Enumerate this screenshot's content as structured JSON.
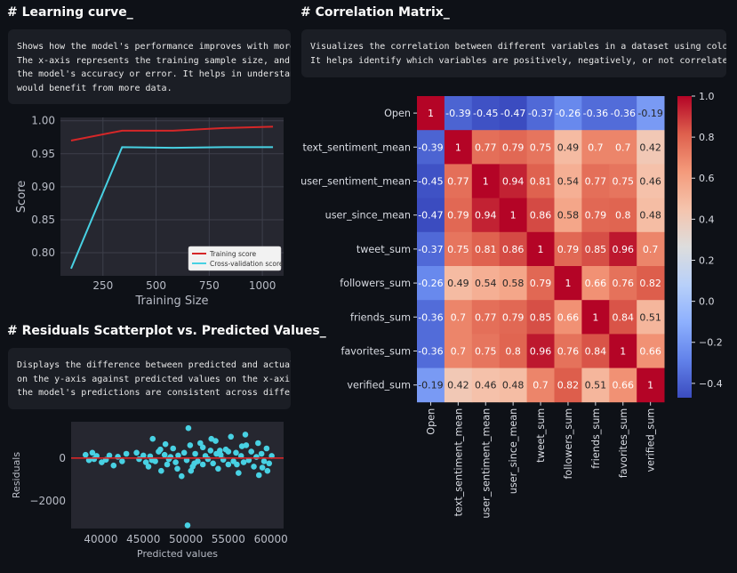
{
  "sections": {
    "learning": {
      "title": "# Learning curve_",
      "description": [
        "Shows how the model's performance improves with more training data.",
        "The x-axis represents the training sample size, and the y-axis shows",
        "the model's accuracy or error. It helps in understanding if the model",
        "would benefit from more data."
      ]
    },
    "residuals": {
      "title": "# Residuals Scatterplot vs. Predicted Values_",
      "description": [
        "Displays the difference between predicted and actual values plotted",
        "on the y-axis against predicted values on the x-axis. It shows if",
        "the model's predictions are consistent across different values."
      ]
    },
    "correlation": {
      "title": "# Correlation Matrix_",
      "description": [
        "Visualizes the correlation between different variables in a dataset using colors.",
        "It helps identify which variables are positively, negatively, or not correlated with each other."
      ]
    }
  },
  "chart_data": [
    {
      "type": "line",
      "xlabel": "Training Size",
      "ylabel": "Score",
      "xticks": [
        250,
        500,
        750,
        1000
      ],
      "yticks": [
        0.8,
        0.85,
        0.9,
        0.95,
        1.0
      ],
      "ytick_labels": [
        "0.80",
        "0.85",
        "0.90",
        "0.95",
        "1.00"
      ],
      "xlim": [
        50,
        1100
      ],
      "ylim": [
        0.765,
        1.005
      ],
      "grid": true,
      "legend": "bottom-right",
      "colors": {
        "background": "#262730",
        "grid": "#3d3f4a",
        "text": "#b8bcc6",
        "training": "#d62728",
        "cv": "#48d1e3"
      },
      "series": [
        {
          "name": "Training score",
          "x": [
            100,
            340,
            580,
            820,
            1050
          ],
          "y": [
            0.97,
            0.985,
            0.985,
            0.989,
            0.991
          ]
        },
        {
          "name": "Cross-validation score",
          "x": [
            100,
            340,
            580,
            820,
            1050
          ],
          "y": [
            0.776,
            0.96,
            0.959,
            0.96,
            0.96
          ]
        }
      ]
    },
    {
      "type": "scatter",
      "xlabel": "Predicted values",
      "ylabel": "Residuals",
      "xticks": [
        40000,
        45000,
        50000,
        55000,
        60000
      ],
      "yticks": [
        -2000,
        0
      ],
      "ytick_labels": [
        "−2000",
        "0"
      ],
      "xlim": [
        36500,
        61500
      ],
      "ylim": [
        -3300,
        1700
      ],
      "zero_line": 0,
      "colors": {
        "background": "#262730",
        "text": "#b8bcc6",
        "points": "#48d1e3",
        "zero_line": "#d62728"
      },
      "points": [
        [
          38200,
          150
        ],
        [
          38600,
          -100
        ],
        [
          39000,
          250
        ],
        [
          39200,
          -50
        ],
        [
          39500,
          100
        ],
        [
          40100,
          -200
        ],
        [
          40600,
          -80
        ],
        [
          41000,
          120
        ],
        [
          41500,
          -350
        ],
        [
          42000,
          60
        ],
        [
          42500,
          -150
        ],
        [
          43000,
          200
        ],
        [
          44500,
          -50
        ],
        [
          45000,
          120
        ],
        [
          45300,
          -200
        ],
        [
          45800,
          80
        ],
        [
          46100,
          900
        ],
        [
          46400,
          -150
        ],
        [
          46800,
          300
        ],
        [
          47100,
          -600
        ],
        [
          47500,
          150
        ],
        [
          47800,
          -300
        ],
        [
          48200,
          50
        ],
        [
          48500,
          450
        ],
        [
          48800,
          -200
        ],
        [
          49100,
          120
        ],
        [
          49500,
          -850
        ],
        [
          49800,
          250
        ],
        [
          50100,
          -100
        ],
        [
          50300,
          1400
        ],
        [
          50500,
          600
        ],
        [
          50800,
          -400
        ],
        [
          51100,
          200
        ],
        [
          51400,
          -150
        ],
        [
          51700,
          700
        ],
        [
          52000,
          -300
        ],
        [
          52300,
          100
        ],
        [
          52600,
          -50
        ],
        [
          52900,
          350
        ],
        [
          53200,
          -250
        ],
        [
          53500,
          800
        ],
        [
          53800,
          -500
        ],
        [
          54100,
          150
        ],
        [
          54400,
          -80
        ],
        [
          54700,
          400
        ],
        [
          55000,
          -300
        ],
        [
          55300,
          1000
        ],
        [
          55600,
          -150
        ],
        [
          55900,
          250
        ],
        [
          56200,
          -700
        ],
        [
          56500,
          100
        ],
        [
          56800,
          -200
        ],
        [
          57100,
          600
        ],
        [
          57400,
          -100
        ],
        [
          57700,
          300
        ],
        [
          58000,
          -400
        ],
        [
          58300,
          50
        ],
        [
          58600,
          -800
        ],
        [
          58900,
          200
        ],
        [
          59200,
          -150
        ],
        [
          59500,
          450
        ],
        [
          59800,
          -250
        ],
        [
          60100,
          100
        ],
        [
          50200,
          -3150
        ],
        [
          53000,
          900
        ],
        [
          57000,
          1100
        ],
        [
          47000,
          400
        ],
        [
          49000,
          -500
        ],
        [
          52000,
          500
        ],
        [
          55000,
          300
        ],
        [
          44200,
          250
        ],
        [
          46000,
          -100
        ],
        [
          48000,
          -50
        ],
        [
          51000,
          -250
        ],
        [
          54000,
          350
        ],
        [
          56000,
          -300
        ],
        [
          58500,
          700
        ],
        [
          59000,
          -450
        ],
        [
          45600,
          -400
        ],
        [
          47600,
          650
        ],
        [
          50600,
          -600
        ],
        [
          53600,
          200
        ],
        [
          56600,
          550
        ],
        [
          59600,
          -600
        ]
      ]
    },
    {
      "type": "heatmap",
      "variables": [
        "Open",
        "text_sentiment_mean",
        "user_sentiment_mean",
        "user_since_mean",
        "tweet_sum",
        "followers_sum",
        "friends_sum",
        "favorites_sum",
        "verified_sum"
      ],
      "values": [
        [
          1,
          -0.39,
          -0.45,
          -0.47,
          -0.37,
          -0.26,
          -0.36,
          -0.36,
          -0.19
        ],
        [
          -0.39,
          1,
          0.77,
          0.79,
          0.75,
          0.49,
          0.7,
          0.7,
          0.42
        ],
        [
          -0.45,
          0.77,
          1,
          0.94,
          0.81,
          0.54,
          0.77,
          0.75,
          0.46
        ],
        [
          -0.47,
          0.79,
          0.94,
          1,
          0.86,
          0.58,
          0.79,
          0.8,
          0.48
        ],
        [
          -0.37,
          0.75,
          0.81,
          0.86,
          1,
          0.79,
          0.85,
          0.96,
          0.7
        ],
        [
          -0.26,
          0.49,
          0.54,
          0.58,
          0.79,
          1,
          0.66,
          0.76,
          0.82
        ],
        [
          -0.36,
          0.7,
          0.77,
          0.79,
          0.85,
          0.66,
          1,
          0.84,
          0.51
        ],
        [
          -0.36,
          0.7,
          0.75,
          0.8,
          0.96,
          0.76,
          0.84,
          1,
          0.66
        ],
        [
          -0.19,
          0.42,
          0.46,
          0.48,
          0.7,
          0.82,
          0.51,
          0.66,
          1
        ]
      ],
      "colorbar": {
        "range": [
          -0.47,
          1.0
        ],
        "ticks": [
          1.0,
          0.8,
          0.6,
          0.4,
          0.2,
          0.0,
          -0.2,
          -0.4
        ],
        "tick_labels": [
          "1.0",
          "0.8",
          "0.6",
          "0.4",
          "0.2",
          "0.0",
          "−0.2",
          "−0.4"
        ]
      },
      "colormap": "coolwarm",
      "colors": {
        "text": "#d9dce3"
      }
    }
  ]
}
